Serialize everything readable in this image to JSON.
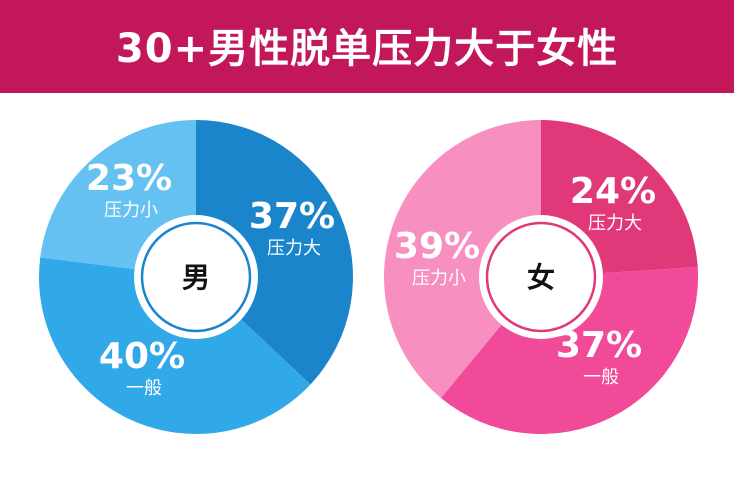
{
  "title": "30+男性脱单压力大于女性",
  "chart_data": [
    {
      "type": "pie",
      "center_label": "男",
      "slices": [
        {
          "label": "压力大",
          "value": 37,
          "display": "37%",
          "color": "#1b85cc"
        },
        {
          "label": "一般",
          "value": 40,
          "display": "40%",
          "color": "#31a8e8"
        },
        {
          "label": "压力小",
          "value": 23,
          "display": "23%",
          "color": "#64c1f2"
        }
      ]
    },
    {
      "type": "pie",
      "center_label": "女",
      "slices": [
        {
          "label": "压力大",
          "value": 24,
          "display": "24%",
          "color": "#e1387a"
        },
        {
          "label": "一般",
          "value": 37,
          "display": "37%",
          "color": "#f14a98"
        },
        {
          "label": "压力小",
          "value": 39,
          "display": "39%",
          "color": "#f78fc0"
        }
      ]
    }
  ],
  "ring_color_male": "#1b85cc",
  "ring_color_female": "#e1387a"
}
